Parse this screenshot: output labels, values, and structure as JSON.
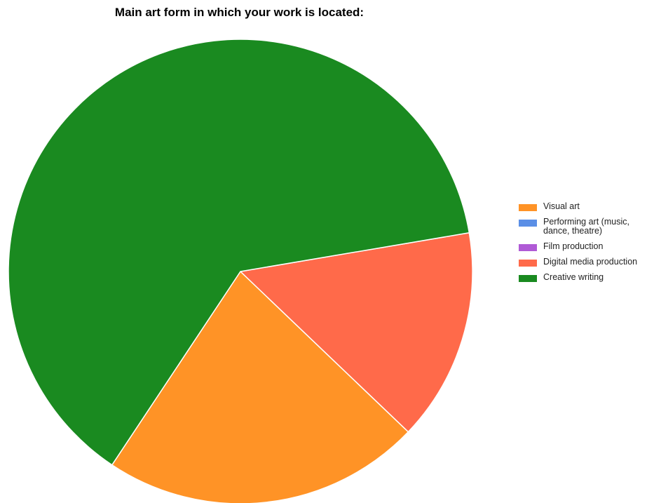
{
  "chart_data": {
    "type": "pie",
    "title": "Main art form in which your work is located:",
    "legend_position": "right",
    "start_angle_deg": 123.6,
    "slices": [
      {
        "label": "Visual art",
        "value": 22.2,
        "color": "#ff9326"
      },
      {
        "label": "Performing art (music, dance, theatre)",
        "value": 0,
        "color": "#5b8fe6"
      },
      {
        "label": "Film production",
        "value": 0,
        "color": "#b05ad6"
      },
      {
        "label": "Digital media production",
        "value": 14.8,
        "color": "#ff6a4a"
      },
      {
        "label": "Creative writing",
        "value": 63.0,
        "color": "#1a8a20"
      }
    ]
  }
}
